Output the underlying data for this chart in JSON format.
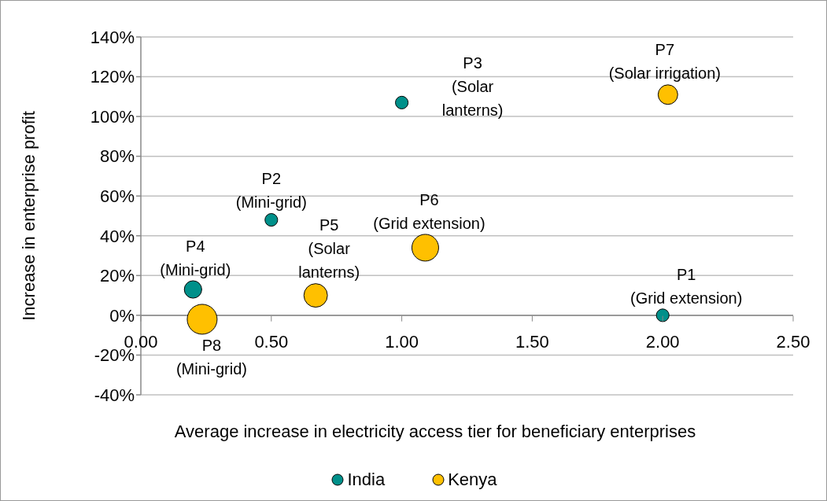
{
  "chart_data": {
    "type": "bubble",
    "xlabel": "Average increase in electricity access tier for beneficiary enterprises",
    "ylabel": "Increase in enterprise profit",
    "series": [
      {
        "name": "India",
        "color": "#00908a",
        "x": [
          2.0,
          0.5,
          1.0,
          0.2
        ],
        "values": [
          0,
          48,
          107,
          13
        ],
        "sizes": [
          0.18,
          0.18,
          0.18,
          0.34
        ]
      },
      {
        "name": "Kenya",
        "color": "#ffc000",
        "x": [
          0.67,
          1.09,
          2.02,
          0.235
        ],
        "values": [
          10,
          34,
          111,
          -2
        ],
        "sizes": [
          0.62,
          0.8,
          0.43,
          1
        ]
      }
    ],
    "xlim": [
      0,
      2.5
    ],
    "xticks": [
      {
        "value": 0,
        "label": "0.00"
      },
      {
        "value": 0.5,
        "label": "0.50"
      },
      {
        "value": 1,
        "label": "1.00"
      },
      {
        "value": 1.5,
        "label": "1.50"
      },
      {
        "value": 2,
        "label": "2.00"
      },
      {
        "value": 2.5,
        "label": "2.50"
      }
    ],
    "ylim": [
      -40,
      140
    ],
    "yticks": [
      {
        "value": -40,
        "label": "-40%"
      },
      {
        "value": -20,
        "label": "-20%"
      },
      {
        "value": 0,
        "label": "0%"
      },
      {
        "value": 20,
        "label": "20%"
      },
      {
        "value": 40,
        "label": "40%"
      },
      {
        "value": 60,
        "label": "60%"
      },
      {
        "value": 80,
        "label": "80%"
      },
      {
        "value": 100,
        "label": "100%"
      },
      {
        "value": 120,
        "label": "120%"
      },
      {
        "value": 140,
        "label": "140%"
      }
    ],
    "grid": "y",
    "legend": "bottom",
    "marker": "circle",
    "annotations": [
      {
        "text": "P1\n(Grid extension)",
        "x": 2.0,
        "y": 0
      },
      {
        "text": "P2\n(Mini-grid)",
        "x": 0.5,
        "y": 48
      },
      {
        "text": "P3\n(Solar\nlanterns)",
        "x": 1.0,
        "y": 107
      },
      {
        "text": "P4\n(Mini-grid)",
        "x": 0.2,
        "y": 13
      },
      {
        "text": "P5\n(Solar\nlanterns)",
        "x": 0.67,
        "y": 10
      },
      {
        "text": "P6\n(Grid extension)",
        "x": 1.09,
        "y": 34
      },
      {
        "text": "P7\n(Solar irrigation)",
        "x": 2.02,
        "y": 111
      },
      {
        "text": "P8\n(Mini-grid)",
        "x": 0.235,
        "y": -2
      }
    ]
  }
}
